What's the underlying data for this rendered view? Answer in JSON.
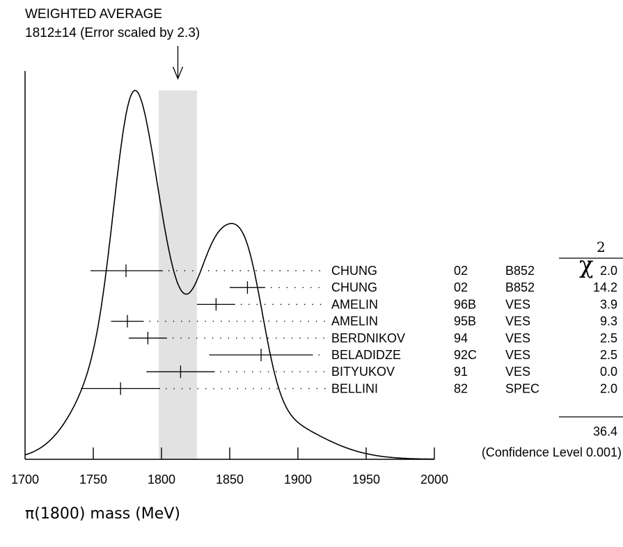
{
  "chart_data": {
    "type": "ideogram",
    "title": "WEIGHTED AVERAGE",
    "subtitle": "1812±14 (Error scaled by 2.3)",
    "xlabel": "π(1800) mass (MeV)",
    "xlim": [
      1700,
      2000
    ],
    "x_ticks": [
      "1700",
      "1750",
      "1800",
      "1850",
      "1900",
      "1950",
      "2000"
    ],
    "weighted_average": {
      "value": 1812,
      "error": 14
    },
    "chi2_header": "χ",
    "chi2_header_sup": "2",
    "measurements": [
      {
        "author": "CHUNG",
        "year": "02",
        "experiment": "B852",
        "chi2": "2.0",
        "value": 1774,
        "low": 1748,
        "high": 1801
      },
      {
        "author": "CHUNG",
        "year": "02",
        "experiment": "B852",
        "chi2": "14.2",
        "value": 1863,
        "low": 1850,
        "high": 1876
      },
      {
        "author": "AMELIN",
        "year": "96B",
        "experiment": "VES",
        "chi2": "3.9",
        "value": 1840,
        "low": 1826,
        "high": 1854
      },
      {
        "author": "AMELIN",
        "year": "95B",
        "experiment": "VES",
        "chi2": "9.3",
        "value": 1775,
        "low": 1763,
        "high": 1787
      },
      {
        "author": "BERDNIKOV",
        "year": "94",
        "experiment": "VES",
        "chi2": "2.5",
        "value": 1790,
        "low": 1776,
        "high": 1804
      },
      {
        "author": "BELADIDZE",
        "year": "92C",
        "experiment": "VES",
        "chi2": "2.5",
        "value": 1873,
        "low": 1835,
        "high": 1911
      },
      {
        "author": "BITYUKOV",
        "year": "91",
        "experiment": "VES",
        "chi2": "0.0",
        "value": 1814,
        "low": 1789,
        "high": 1839
      },
      {
        "author": "BELLINI",
        "year": "82",
        "experiment": "SPEC",
        "chi2": "2.0",
        "value": 1770,
        "low": 1741,
        "high": 1799
      }
    ],
    "chi2_total": "36.4",
    "confidence_level_text": "(Confidence Level  0.001)"
  }
}
